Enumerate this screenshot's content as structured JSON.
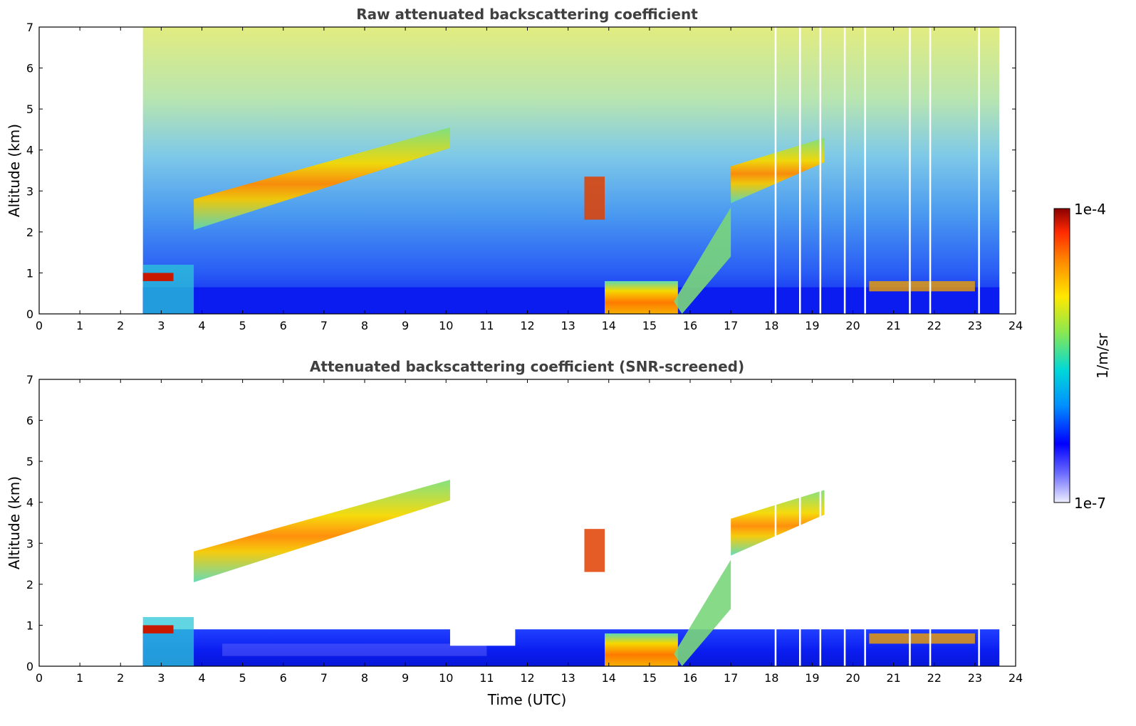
{
  "chart_data": [
    {
      "type": "heatmap",
      "title": "Raw attenuated backscattering coefficient",
      "xlabel": "",
      "ylabel": "Altitude (km)",
      "xlim": [
        0,
        24
      ],
      "ylim": [
        0,
        7
      ],
      "xticks": [
        "0",
        "1",
        "2",
        "3",
        "4",
        "5",
        "6",
        "7",
        "8",
        "9",
        "10",
        "11",
        "12",
        "13",
        "14",
        "15",
        "16",
        "17",
        "18",
        "19",
        "20",
        "21",
        "22",
        "23",
        "24"
      ],
      "yticks": [
        "0",
        "1",
        "2",
        "3",
        "4",
        "5",
        "6",
        "7"
      ],
      "data_start_hour": 2.55,
      "data_end_hour": 23.6,
      "features": [
        {
          "name": "main cloud layer (3.8-10 h)",
          "start": 3.8,
          "end": 10.1,
          "alt_start": 2.3,
          "alt_end": 4.3,
          "thickness": 0.5
        },
        {
          "name": "cloud layer (17-19.3 h)",
          "start": 17.0,
          "end": 19.3,
          "alt_start": 3.0,
          "alt_end": 4.0,
          "thickness": 0.6
        },
        {
          "name": "boundary layer (2.5-3.8 h)",
          "start": 2.55,
          "end": 3.8,
          "alt_start": 0.0,
          "alt_end": 1.0
        },
        {
          "name": "low cloud (14-15.7 h)",
          "start": 13.9,
          "end": 15.7,
          "alt_start": 0.0,
          "alt_end": 0.8
        }
      ],
      "data_gaps_hours": [
        18.1,
        18.7,
        19.2,
        19.8,
        20.3,
        21.4,
        21.9,
        23.1
      ]
    },
    {
      "type": "heatmap",
      "title": "Attenuated backscattering coefficient (SNR-screened)",
      "xlabel": "Time (UTC)",
      "ylabel": "Altitude (km)",
      "xlim": [
        0,
        24
      ],
      "ylim": [
        0,
        7
      ],
      "xticks": [
        "0",
        "1",
        "2",
        "3",
        "4",
        "5",
        "6",
        "7",
        "8",
        "9",
        "10",
        "11",
        "12",
        "13",
        "14",
        "15",
        "16",
        "17",
        "18",
        "19",
        "20",
        "21",
        "22",
        "23",
        "24"
      ],
      "yticks": [
        "0",
        "1",
        "2",
        "3",
        "4",
        "5",
        "6",
        "7"
      ],
      "data_start_hour": 2.55,
      "data_end_hour": 23.6,
      "features": [
        {
          "name": "main cloud layer (3.8-10 h)",
          "start": 3.8,
          "end": 10.1,
          "alt_start": 2.3,
          "alt_end": 4.3,
          "thickness": 0.5
        },
        {
          "name": "cloud layer (17-19.3 h)",
          "start": 17.0,
          "end": 19.3,
          "alt_start": 3.0,
          "alt_end": 4.0,
          "thickness": 0.6
        },
        {
          "name": "screened boundary layer",
          "start": 2.55,
          "end": 23.6,
          "alt_start": 0.0,
          "alt_end": 0.9
        }
      ],
      "data_gaps_hours": [
        18.1,
        18.7,
        19.2,
        19.8,
        20.3,
        21.4,
        21.9,
        23.1
      ]
    }
  ],
  "colorbar": {
    "min_label": "1e-7",
    "max_label": "1e-4",
    "unit_label": "1/m/sr",
    "colors": [
      "#eeeeff",
      "#6666ff",
      "#0000ff",
      "#00a0ff",
      "#00e0d0",
      "#90ee50",
      "#ffee00",
      "#ff9000",
      "#ff2000",
      "#990000"
    ]
  },
  "colors": {
    "low": "#0a1cf0",
    "mid": "#4fd8b0",
    "high": "#f5c800",
    "peak": "#d62000",
    "axis": "#000000",
    "title": "#404040"
  }
}
